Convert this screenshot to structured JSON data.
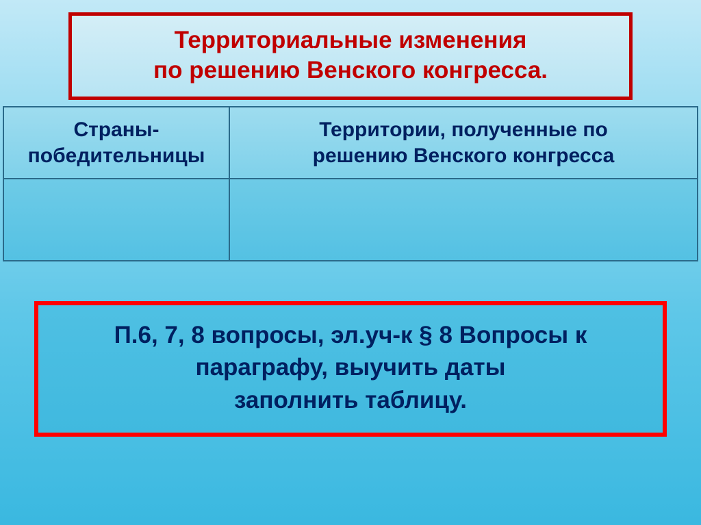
{
  "title": {
    "line1": "Территориальные изменения",
    "line2": "по решению Венского конгресса."
  },
  "table": {
    "headers": {
      "col1_line1": "Страны-",
      "col1_line2": "победительницы",
      "col2_line1": "Территории, полученные по",
      "col2_line2": "решению Венского конгресса"
    }
  },
  "assignment": {
    "line1": "П.6, 7, 8 вопросы, эл.уч-к § 8 Вопросы к",
    "line2": "параграфу,  выучить даты",
    "line3": "заполнить таблицу."
  },
  "colors": {
    "title_border": "#c00000",
    "title_text": "#c00000",
    "header_text": "#002060",
    "assign_border": "#ff0000",
    "assign_text": "#002060",
    "table_border": "#2a6a8a"
  }
}
